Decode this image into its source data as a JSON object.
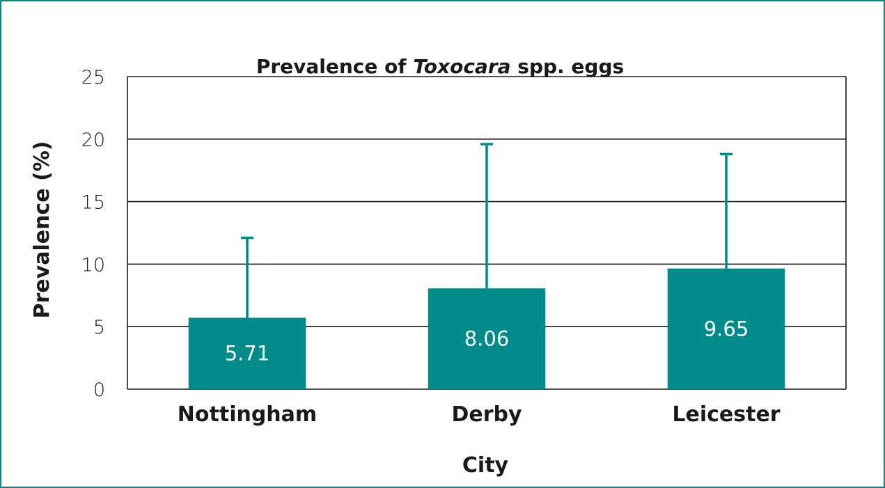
{
  "chart_data": {
    "type": "bar",
    "title_parts": [
      {
        "text": "Prevalence of ",
        "italic": false
      },
      {
        "text": "Toxocara",
        "italic": true
      },
      {
        "text": " spp. eggs",
        "italic": false
      }
    ],
    "xlabel": "City",
    "ylabel": "Prevalence (%)",
    "categories": [
      "Nottingham",
      "Derby",
      "Leicester"
    ],
    "values": [
      5.71,
      8.06,
      9.65
    ],
    "data_labels": [
      "5.71",
      "8.06",
      "9.65"
    ],
    "error_upper": [
      12.1,
      19.6,
      18.8
    ],
    "ylim": [
      0,
      25
    ],
    "yticks": [
      0,
      5,
      10,
      15,
      20,
      25
    ],
    "grid": true,
    "bar_color": "#008b8b",
    "frame_color": "#008b8b"
  }
}
